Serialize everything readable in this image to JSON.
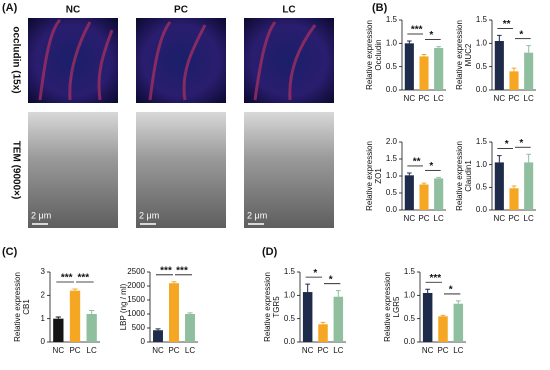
{
  "panels": {
    "a": "(A)",
    "b": "(B)",
    "c": "(C)",
    "d": "(D)"
  },
  "image_panel": {
    "columns": [
      "NC",
      "PC",
      "LC"
    ],
    "rows": [
      "occludin (15x)",
      "TEM (9000×)"
    ],
    "scale_bar": "2 μm"
  },
  "chart_data": [
    {
      "type": "bar",
      "ylabel": [
        "Relative expression",
        "Occludin"
      ],
      "categories": [
        "NC",
        "PC",
        "LC"
      ],
      "colors": [
        "#1e2b4a",
        "#f5a623",
        "#8fbf9f"
      ],
      "values": [
        1.0,
        0.72,
        0.9
      ],
      "errors": [
        0.05,
        0.04,
        0.03
      ],
      "ylim": [
        0,
        1.5
      ],
      "yticks": [
        {
          "value": 0,
          "label": "0.0"
        },
        {
          "value": 0.5,
          "label": "0.5"
        },
        {
          "value": 1,
          "label": "1.0"
        },
        {
          "value": 1.5,
          "label": "1.5"
        }
      ],
      "significance": [
        {
          "pair": [
            "NC",
            "PC"
          ],
          "label": "***"
        },
        {
          "pair": [
            "PC",
            "LC"
          ],
          "label": "*"
        }
      ]
    },
    {
      "type": "bar",
      "ylabel": [
        "Relative expression",
        "MUC2"
      ],
      "categories": [
        "NC",
        "PC",
        "LC"
      ],
      "colors": [
        "#1e2b4a",
        "#f5a623",
        "#8fbf9f"
      ],
      "values": [
        1.05,
        0.4,
        0.8
      ],
      "errors": [
        0.12,
        0.07,
        0.15
      ],
      "ylim": [
        0,
        1.5
      ],
      "yticks": [
        {
          "value": 0,
          "label": "0.0"
        },
        {
          "value": 0.5,
          "label": "0.5"
        },
        {
          "value": 1,
          "label": "1.0"
        },
        {
          "value": 1.5,
          "label": "1.5"
        }
      ],
      "significance": [
        {
          "pair": [
            "NC",
            "PC"
          ],
          "label": "**"
        },
        {
          "pair": [
            "PC",
            "LC"
          ],
          "label": "*"
        }
      ]
    },
    {
      "type": "bar",
      "ylabel": [
        "Relative expression",
        "ZO1"
      ],
      "categories": [
        "NC",
        "PC",
        "LC"
      ],
      "colors": [
        "#1e2b4a",
        "#f5a623",
        "#8fbf9f"
      ],
      "values": [
        1.02,
        0.75,
        0.93
      ],
      "errors": [
        0.07,
        0.04,
        0.03
      ],
      "ylim": [
        0,
        2
      ],
      "yticks": [
        {
          "value": 0,
          "label": "0.0"
        },
        {
          "value": 0.5,
          "label": "0.5"
        },
        {
          "value": 1,
          "label": "1.0"
        },
        {
          "value": 1.5,
          "label": "1.5"
        },
        {
          "value": 2,
          "label": "2.0"
        }
      ],
      "significance": [
        {
          "pair": [
            "NC",
            "PC"
          ],
          "label": "**"
        },
        {
          "pair": [
            "PC",
            "LC"
          ],
          "label": "*"
        }
      ]
    },
    {
      "type": "bar",
      "ylabel": [
        "Relative expression",
        "Claudin1"
      ],
      "categories": [
        "NC",
        "PC",
        "LC"
      ],
      "colors": [
        "#1e2b4a",
        "#f5a623",
        "#8fbf9f"
      ],
      "values": [
        1.05,
        0.48,
        1.05
      ],
      "errors": [
        0.15,
        0.05,
        0.18
      ],
      "ylim": [
        0,
        1.5
      ],
      "yticks": [
        {
          "value": 0,
          "label": "0.0"
        },
        {
          "value": 0.5,
          "label": "0.5"
        },
        {
          "value": 1,
          "label": "1.0"
        },
        {
          "value": 1.5,
          "label": "1.5"
        }
      ],
      "significance": [
        {
          "pair": [
            "NC",
            "PC"
          ],
          "label": "*"
        },
        {
          "pair": [
            "PC",
            "LC"
          ],
          "label": "*"
        }
      ]
    },
    {
      "type": "bar",
      "ylabel": [
        "Relative expression",
        "CB1"
      ],
      "categories": [
        "NC",
        "PC",
        "LC"
      ],
      "colors": [
        "#151515",
        "#f5a623",
        "#8fbf9f"
      ],
      "values": [
        1.0,
        2.2,
        1.2
      ],
      "errors": [
        0.07,
        0.07,
        0.15
      ],
      "ylim": [
        0,
        3
      ],
      "yticks": [
        0,
        1,
        2,
        3
      ],
      "significance": [
        {
          "pair": [
            "NC",
            "PC"
          ],
          "label": "***"
        },
        {
          "pair": [
            "PC",
            "LC"
          ],
          "label": "***"
        }
      ]
    },
    {
      "type": "bar",
      "ylabel": [
        "LBP (ng / ml)"
      ],
      "categories": [
        "NC",
        "PC",
        "LC"
      ],
      "colors": [
        "#1e2b4a",
        "#f5a623",
        "#8fbf9f"
      ],
      "values": [
        420,
        2100,
        1000
      ],
      "errors": [
        50,
        50,
        40
      ],
      "ylim": [
        0,
        2500
      ],
      "yticks": [
        0,
        500,
        1000,
        1500,
        2000,
        2500
      ],
      "significance": [
        {
          "pair": [
            "NC",
            "PC"
          ],
          "label": "***"
        },
        {
          "pair": [
            "PC",
            "LC"
          ],
          "label": "***"
        }
      ]
    },
    {
      "type": "bar",
      "ylabel": [
        "Relative expression",
        "TGR5"
      ],
      "categories": [
        "NC",
        "PC",
        "LC"
      ],
      "colors": [
        "#1e2b4a",
        "#f5a623",
        "#8fbf9f"
      ],
      "values": [
        1.07,
        0.38,
        0.97
      ],
      "errors": [
        0.17,
        0.04,
        0.13
      ],
      "ylim": [
        0,
        1.5
      ],
      "yticks": [
        {
          "value": 0,
          "label": "0.0"
        },
        {
          "value": 0.5,
          "label": "0.5"
        },
        {
          "value": 1,
          "label": "1.0"
        },
        {
          "value": 1.5,
          "label": "1.5"
        }
      ],
      "significance": [
        {
          "pair": [
            "NC",
            "PC"
          ],
          "label": "*"
        },
        {
          "pair": [
            "PC",
            "LC"
          ],
          "label": "*"
        }
      ]
    },
    {
      "type": "bar",
      "ylabel": [
        "Relative expression",
        "LGR5"
      ],
      "categories": [
        "NC",
        "PC",
        "LC"
      ],
      "colors": [
        "#1e2b4a",
        "#f5a623",
        "#8fbf9f"
      ],
      "values": [
        1.05,
        0.55,
        0.82
      ],
      "errors": [
        0.08,
        0.02,
        0.06
      ],
      "ylim": [
        0,
        1.5
      ],
      "yticks": [
        {
          "value": 0,
          "label": "0.0"
        },
        {
          "value": 0.5,
          "label": "0.5"
        },
        {
          "value": 1,
          "label": "1.0"
        },
        {
          "value": 1.5,
          "label": "1.5"
        }
      ],
      "significance": [
        {
          "pair": [
            "NC",
            "PC"
          ],
          "label": "***"
        },
        {
          "pair": [
            "PC",
            "LC"
          ],
          "label": "*"
        }
      ]
    }
  ]
}
